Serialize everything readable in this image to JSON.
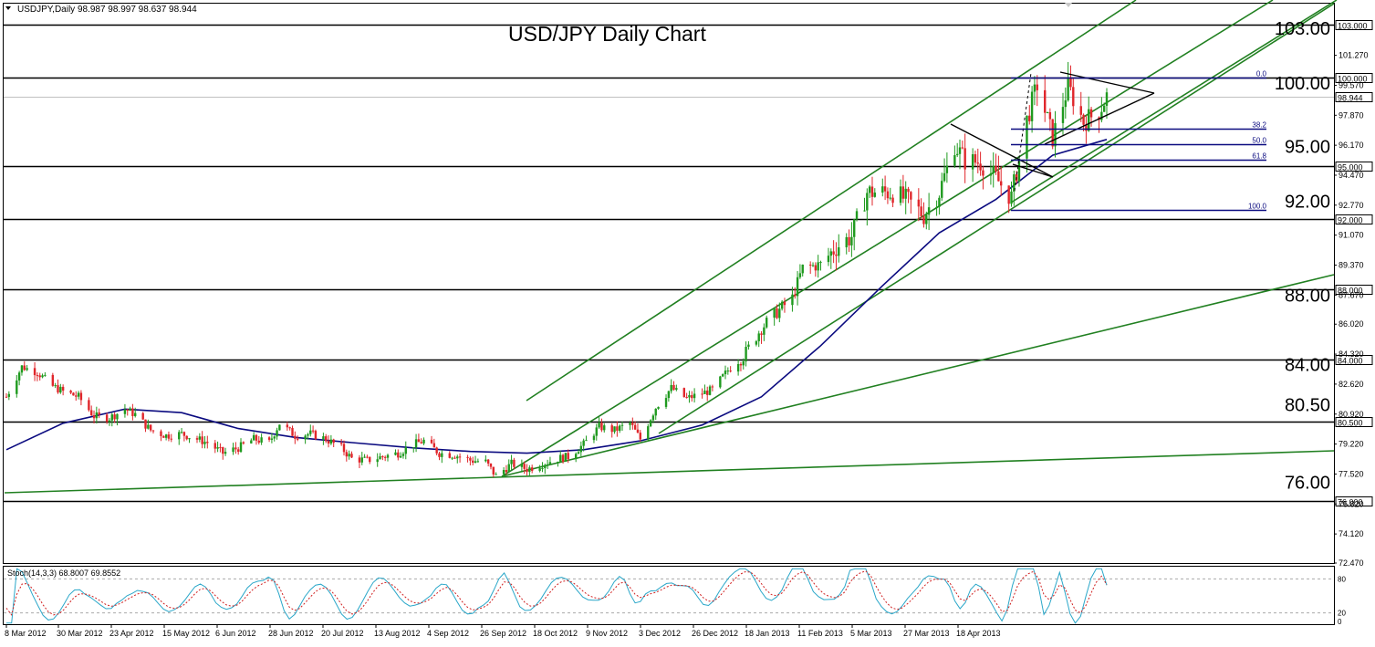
{
  "header": {
    "symbol_line": "USDJPY,Daily  98.987 98.997 98.637 98.944"
  },
  "chart_data": {
    "type": "candlestick",
    "symbol": "USDJPY",
    "timeframe": "Daily",
    "ohlc_header": {
      "open": 98.987,
      "high": 98.997,
      "low": 98.637,
      "close": 98.944
    },
    "title": "USD/JPY Daily Chart",
    "ylim": [
      72.47,
      104.2
    ],
    "y_ticks": [
      "101.270",
      "99.570",
      "97.870",
      "96.170",
      "94.470",
      "92.770",
      "91.070",
      "89.370",
      "87.670",
      "86.020",
      "84.320",
      "82.620",
      "80.920",
      "79.220",
      "77.520",
      "75.820",
      "74.120",
      "72.470"
    ],
    "x_labels": [
      "8 Mar 2012",
      "30 Mar 2012",
      "23 Apr 2012",
      "15 May 2012",
      "6 Jun 2012",
      "28 Jun 2012",
      "20 Jul 2012",
      "13 Aug 2012",
      "4 Sep 2012",
      "26 Sep 2012",
      "18 Oct 2012",
      "9 Nov 2012",
      "3 Dec 2012",
      "26 Dec 2012",
      "18 Jan 2013",
      "11 Feb 2013",
      "5 Mar 2013",
      "27 Mar 2013",
      "18 Apr 2013"
    ],
    "horizontal_levels": [
      {
        "value": 103.0,
        "box": "103.000",
        "big": "103.00"
      },
      {
        "value": 100.0,
        "box": "100.000",
        "big": "100.00"
      },
      {
        "value": 95.0,
        "box": "95.000",
        "big": "95.00"
      },
      {
        "value": 92.0,
        "box": "92.000",
        "big": "92.00"
      },
      {
        "value": 88.0,
        "box": "88.000",
        "big": "88.00"
      },
      {
        "value": 84.0,
        "box": "84.000",
        "big": "84.00"
      },
      {
        "value": 80.5,
        "box": "80.500",
        "big": "80.50"
      },
      {
        "value": 76.0,
        "box": "76.000",
        "big": "76.00"
      }
    ],
    "current_price": {
      "value": 98.944,
      "label": "98.944"
    },
    "fibonacci": {
      "from": 92.5,
      "to": 100.0,
      "levels": [
        {
          "label": "0.0",
          "value": 100.0
        },
        {
          "label": "38.2",
          "value": 97.13
        },
        {
          "label": "50.0",
          "value": 96.25
        },
        {
          "label": "61.8",
          "value": 95.36
        },
        {
          "label": "100.0",
          "value": 92.5
        }
      ]
    },
    "close_path": [
      [
        "8 Mar 2012",
        81.9
      ],
      [
        "14 Mar 2012",
        83.6
      ],
      [
        "20 Mar 2012",
        83.3
      ],
      [
        "26 Mar 2012",
        82.5
      ],
      [
        "30 Mar 2012",
        82.2
      ],
      [
        "5 Apr 2012",
        81.9
      ],
      [
        "11 Apr 2012",
        80.8
      ],
      [
        "17 Apr 2012",
        80.7
      ],
      [
        "23 Apr 2012",
        81.2
      ],
      [
        "27 Apr 2012",
        80.9
      ],
      [
        "3 May 2012",
        80.0
      ],
      [
        "9 May 2012",
        79.7
      ],
      [
        "15 May 2012",
        79.8
      ],
      [
        "21 May 2012",
        79.5
      ],
      [
        "25 May 2012",
        79.3
      ],
      [
        "31 May 2012",
        78.7
      ],
      [
        "6 Jun 2012",
        79.0
      ],
      [
        "12 Jun 2012",
        79.5
      ],
      [
        "18 Jun 2012",
        79.3
      ],
      [
        "22 Jun 2012",
        80.4
      ],
      [
        "28 Jun 2012",
        79.7
      ],
      [
        "4 Jul 2012",
        79.8
      ],
      [
        "10 Jul 2012",
        79.5
      ],
      [
        "16 Jul 2012",
        79.0
      ],
      [
        "20 Jul 2012",
        78.4
      ],
      [
        "26 Jul 2012",
        78.3
      ],
      [
        "1 Aug 2012",
        78.5
      ],
      [
        "7 Aug 2012",
        78.7
      ],
      [
        "13 Aug 2012",
        79.2
      ],
      [
        "17 Aug 2012",
        79.4
      ],
      [
        "23 Aug 2012",
        78.7
      ],
      [
        "29 Aug 2012",
        78.6
      ],
      [
        "4 Sep 2012",
        78.3
      ],
      [
        "10 Sep 2012",
        78.2
      ],
      [
        "14 Sep 2012",
        77.4
      ],
      [
        "20 Sep 2012",
        78.1
      ],
      [
        "26 Sep 2012",
        77.8
      ],
      [
        "2 Oct 2012",
        78.1
      ],
      [
        "8 Oct 2012",
        78.4
      ],
      [
        "12 Oct 2012",
        78.5
      ],
      [
        "18 Oct 2012",
        79.2
      ],
      [
        "24 Oct 2012",
        80.2
      ],
      [
        "30 Oct 2012",
        80.0
      ],
      [
        "5 Nov 2012",
        80.4
      ],
      [
        "9 Nov 2012",
        79.5
      ],
      [
        "15 Nov 2012",
        81.3
      ],
      [
        "21 Nov 2012",
        82.4
      ],
      [
        "27 Nov 2012",
        81.8
      ],
      [
        "3 Dec 2012",
        82.1
      ],
      [
        "7 Dec 2012",
        82.3
      ],
      [
        "13 Dec 2012",
        83.4
      ],
      [
        "19 Dec 2012",
        84.2
      ],
      [
        "26 Dec 2012",
        85.8
      ],
      [
        "1 Jan 2013",
        86.7
      ],
      [
        "7 Jan 2013",
        87.5
      ],
      [
        "11 Jan 2013",
        89.2
      ],
      [
        "18 Jan 2013",
        89.4
      ],
      [
        "24 Jan 2013",
        90.4
      ],
      [
        "30 Jan 2013",
        91.0
      ],
      [
        "5 Feb 2013",
        93.5
      ],
      [
        "11 Feb 2013",
        93.5
      ],
      [
        "15 Feb 2013",
        93.5
      ],
      [
        "21 Feb 2013",
        93.0
      ],
      [
        "27 Feb 2013",
        92.2
      ],
      [
        "5 Mar 2013",
        93.5
      ],
      [
        "11 Mar 2013",
        96.2
      ],
      [
        "15 Mar 2013",
        95.3
      ],
      [
        "21 Mar 2013",
        95.2
      ],
      [
        "27 Mar 2013",
        94.3
      ],
      [
        "2 Apr 2013",
        93.2
      ],
      [
        "8 Apr 2013",
        97.6
      ],
      [
        "12 Apr 2013",
        99.6
      ],
      [
        "18 Apr 2013",
        96.6
      ],
      [
        "24 Apr 2013",
        99.5
      ],
      [
        "30 Apr 2013",
        97.5
      ],
      [
        "6 May 2013",
        98.1
      ],
      [
        "9 May 2013",
        98.944
      ]
    ],
    "moving_average_path": [
      [
        "8 Mar 2012",
        78.9
      ],
      [
        "30 Mar 2012",
        80.4
      ],
      [
        "23 Apr 2012",
        81.2
      ],
      [
        "15 May 2012",
        81.0
      ],
      [
        "6 Jun 2012",
        80.1
      ],
      [
        "28 Jun 2012",
        79.6
      ],
      [
        "20 Jul 2012",
        79.3
      ],
      [
        "13 Aug 2012",
        79.0
      ],
      [
        "4 Sep 2012",
        78.8
      ],
      [
        "26 Sep 2012",
        78.7
      ],
      [
        "18 Oct 2012",
        78.9
      ],
      [
        "9 Nov 2012",
        79.4
      ],
      [
        "3 Dec 2012",
        80.3
      ],
      [
        "26 Dec 2012",
        81.9
      ],
      [
        "18 Jan 2013",
        84.8
      ],
      [
        "11 Feb 2013",
        88.2
      ],
      [
        "5 Mar 2013",
        91.2
      ],
      [
        "27 Mar 2013",
        93.1
      ],
      [
        "18 Apr 2013",
        95.6
      ],
      [
        "9 May 2013",
        96.5
      ]
    ],
    "stochastic": {
      "label": "Stoch(14,3,3) 68.8007 69.8552",
      "main": 68.8007,
      "signal": 69.8552,
      "ylim": [
        0,
        100
      ],
      "levels": [
        {
          "value": 80,
          "label": "80"
        },
        {
          "value": 20,
          "label": "20"
        }
      ],
      "axis_zero_label": "0"
    }
  }
}
